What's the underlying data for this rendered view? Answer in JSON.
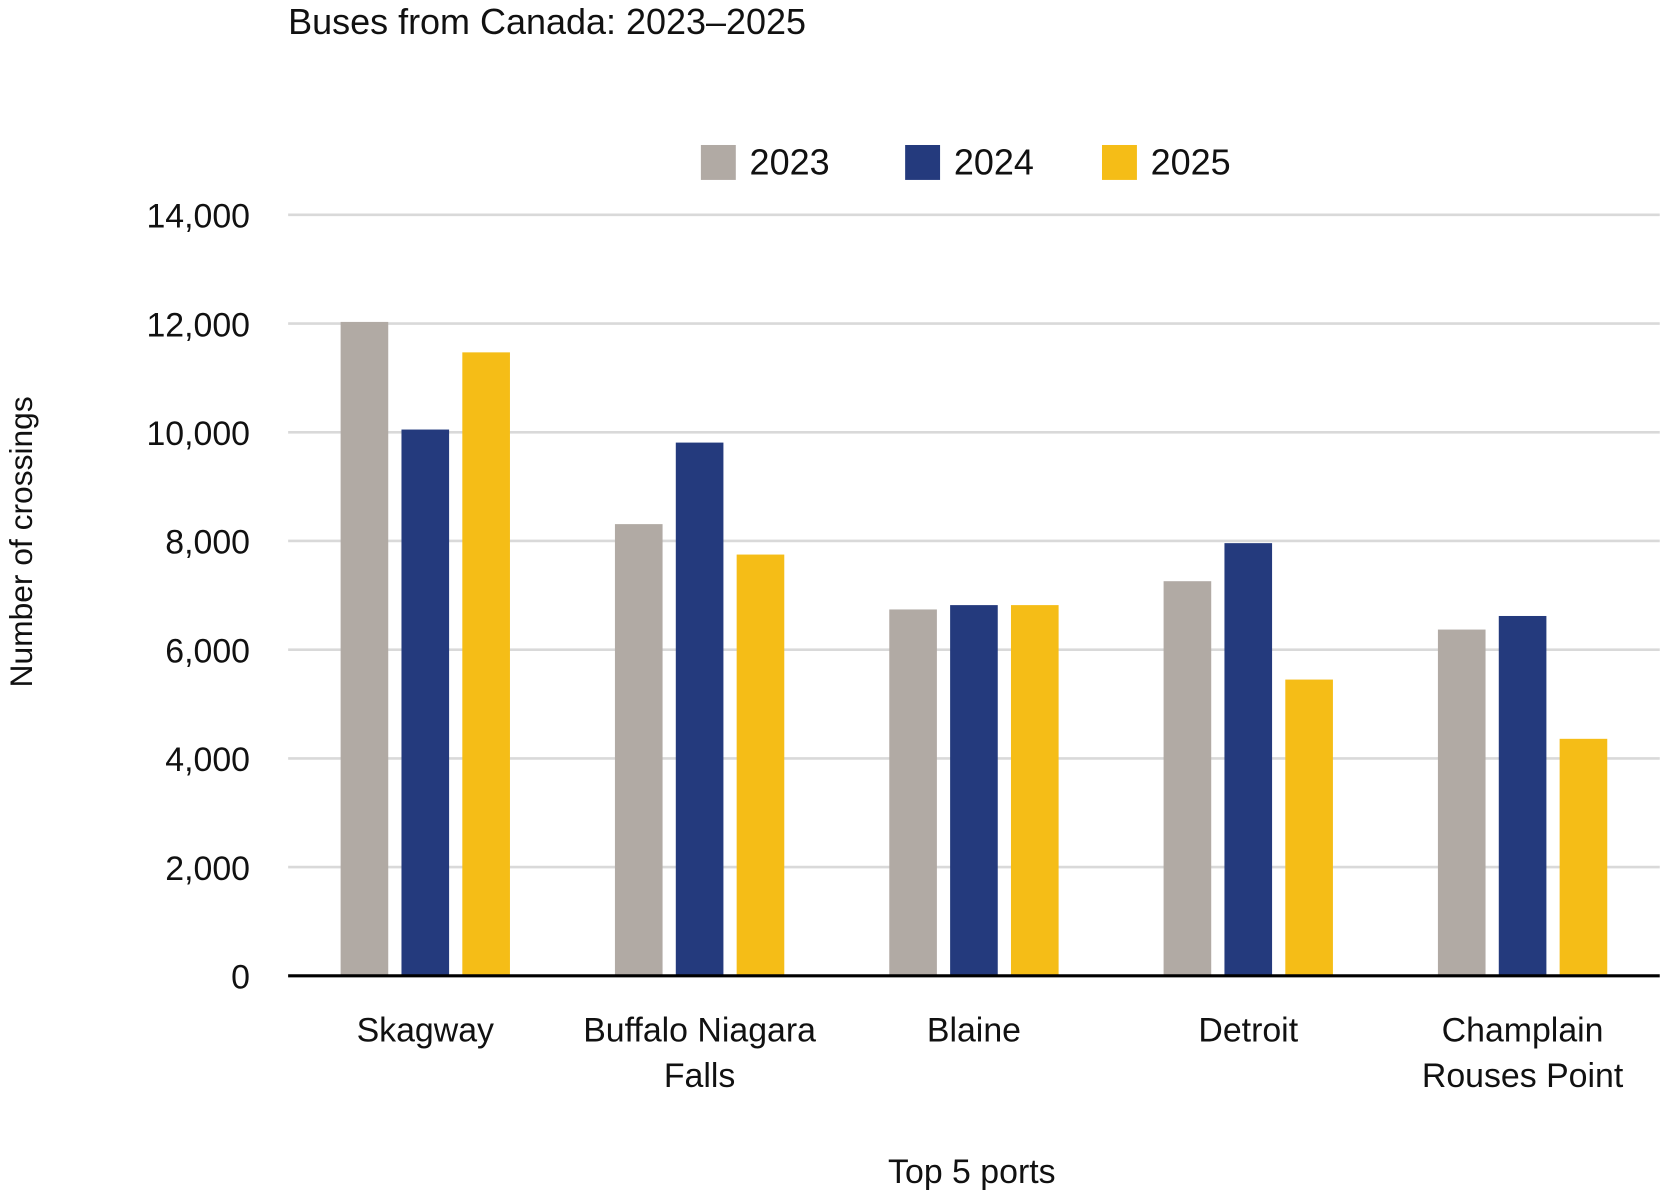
{
  "chart_data": {
    "type": "bar",
    "title": "Buses from Canada: 2023–2025",
    "xlabel": "Top 5 ports",
    "ylabel": "Number of crossings",
    "ylim": [
      0,
      14000
    ],
    "yticks": [
      "0",
      "2,000",
      "4,000",
      "6,000",
      "8,000",
      "10,000",
      "12,000",
      "14,000"
    ],
    "ytick_values": [
      0,
      2000,
      4000,
      6000,
      8000,
      10000,
      12000,
      14000
    ],
    "grid": true,
    "legend_position": "top",
    "categories": [
      [
        "Skagway"
      ],
      [
        "Buffalo Niagara",
        "Falls"
      ],
      [
        "Blaine"
      ],
      [
        "Detroit"
      ],
      [
        "Champlain",
        "Rouses Point"
      ]
    ],
    "series": [
      {
        "name": "2023",
        "color": "#B1AAA4",
        "values": [
          12030,
          8310,
          6740,
          7260,
          6370
        ]
      },
      {
        "name": "2024",
        "color": "#243A7D",
        "values": [
          10050,
          9810,
          6820,
          7960,
          6620
        ]
      },
      {
        "name": "2025",
        "color": "#F5BD17",
        "values": [
          11470,
          7750,
          6820,
          5450,
          4360
        ]
      }
    ]
  }
}
